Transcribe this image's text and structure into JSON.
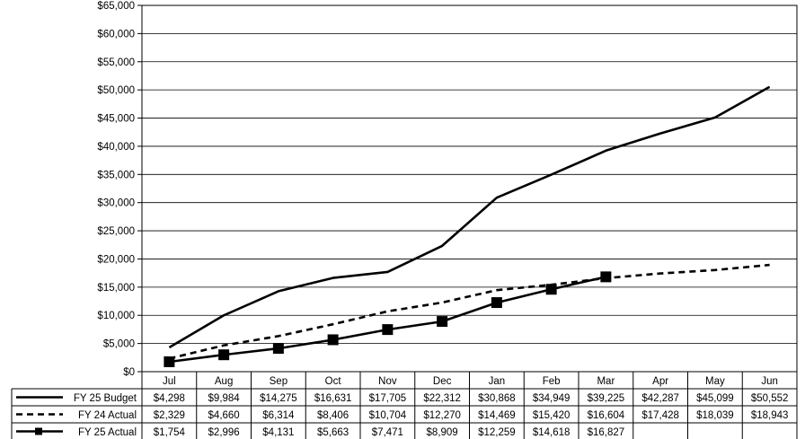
{
  "chart_data": {
    "type": "line",
    "categories": [
      "Jul",
      "Aug",
      "Sep",
      "Oct",
      "Nov",
      "Dec",
      "Jan",
      "Feb",
      "Mar",
      "Apr",
      "May",
      "Jun"
    ],
    "ylim": [
      0,
      65000
    ],
    "y_ticks": [
      0,
      5000,
      10000,
      15000,
      20000,
      25000,
      30000,
      35000,
      40000,
      45000,
      50000,
      55000,
      60000,
      65000
    ],
    "y_tick_labels": [
      "$0",
      "$5,000",
      "$10,000",
      "$15,000",
      "$20,000",
      "$25,000",
      "$30,000",
      "$35,000",
      "$40,000",
      "$45,000",
      "$50,000",
      "$55,000",
      "$60,000",
      "$65,000"
    ],
    "grid": true,
    "legend": "data-table-below",
    "series": [
      {
        "name": "FY 25 Budget",
        "style": "solid",
        "marker": "none",
        "color": "#000000",
        "values": [
          4298,
          9984,
          14275,
          16631,
          17705,
          22312,
          30868,
          34949,
          39225,
          42287,
          45099,
          50552
        ],
        "labels": [
          "$4,298",
          "$9,984",
          "$14,275",
          "$16,631",
          "$17,705",
          "$22,312",
          "$30,868",
          "$34,949",
          "$39,225",
          "$42,287",
          "$45,099",
          "$50,552"
        ]
      },
      {
        "name": "FY 24 Actual",
        "style": "dashed",
        "marker": "none",
        "color": "#000000",
        "values": [
          2329,
          4660,
          6314,
          8406,
          10704,
          12270,
          14469,
          15420,
          16604,
          17428,
          18039,
          18943
        ],
        "labels": [
          "$2,329",
          "$4,660",
          "$6,314",
          "$8,406",
          "$10,704",
          "$12,270",
          "$14,469",
          "$15,420",
          "$16,604",
          "$17,428",
          "$18,039",
          "$18,943"
        ]
      },
      {
        "name": "FY 25 Actual",
        "style": "solid",
        "marker": "square",
        "color": "#000000",
        "values": [
          1754,
          2996,
          4131,
          5663,
          7471,
          8909,
          12259,
          14618,
          16827,
          null,
          null,
          null
        ],
        "labels": [
          "$1,754",
          "$2,996",
          "$4,131",
          "$5,663",
          "$7,471",
          "$8,909",
          "$12,259",
          "$14,618",
          "$16,827",
          "",
          "",
          ""
        ]
      }
    ]
  }
}
